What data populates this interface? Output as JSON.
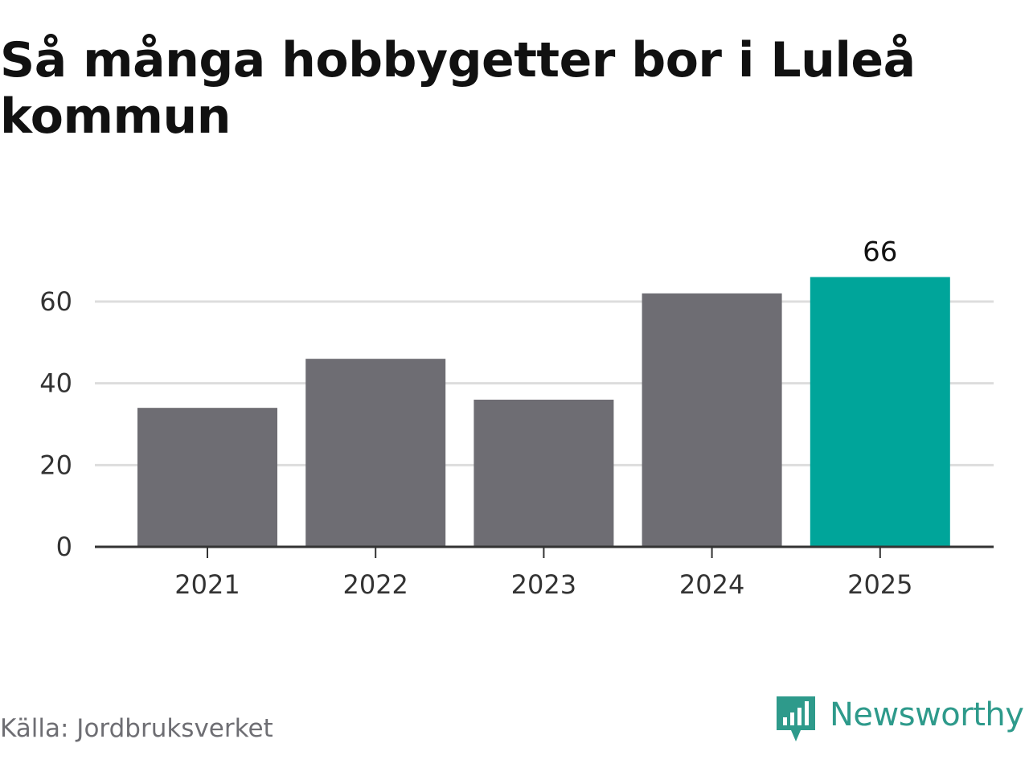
{
  "title": "Så många hobbygetter bor i Luleå kommun",
  "source": "Källa: Jordbruksverket",
  "brand": {
    "name": "Newsworthy",
    "icon": "newsworthy-logo-icon",
    "color": "#2e9a8b"
  },
  "colors": {
    "bar": "#6e6d73",
    "highlight": "#00a59a",
    "grid": "#dddddd",
    "axis": "#333333"
  },
  "chart_data": {
    "type": "bar",
    "categories": [
      "2021",
      "2022",
      "2023",
      "2024",
      "2025"
    ],
    "values": [
      34,
      46,
      36,
      62,
      66
    ],
    "highlight_index": 4,
    "data_labels": {
      "2025": "66"
    },
    "y_ticks": [
      0,
      20,
      40,
      60
    ],
    "ylim": [
      0,
      60
    ],
    "grid": true,
    "title": "Så många hobbygetter bor i Luleå kommun",
    "xlabel": "",
    "ylabel": ""
  }
}
